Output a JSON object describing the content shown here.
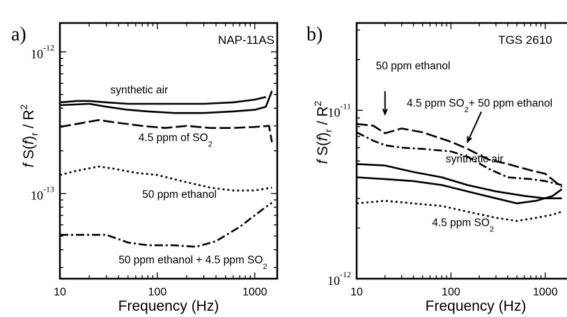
{
  "chart_data": [
    {
      "type": "line",
      "panel_label": "a)",
      "title": "NAP-11AS",
      "xlabel": "Frequency (Hz)",
      "ylabel": {
        "f": "f",
        "S": "S",
        "paren_open": "(",
        "f_arg": "f",
        "paren_close": ")",
        "sub_r": "r",
        "slash": "/",
        "R": "R",
        "sup_2": "2"
      },
      "xscale": "log",
      "yscale": "log",
      "xlim": [
        10,
        1700
      ],
      "ylim": [
        2.5e-14,
        1.6e-12
      ],
      "xticks": [
        {
          "v": 10,
          "label": "10"
        },
        {
          "v": 100,
          "label": "100"
        },
        {
          "v": 1000,
          "label": "1000"
        }
      ],
      "yticks": [
        {
          "v": 1e-12,
          "mant": "10",
          "exp": "-12"
        },
        {
          "v": 1e-13,
          "mant": "10",
          "exp": "-13"
        }
      ],
      "series": [
        {
          "name": "synthetic air",
          "dash": "",
          "points": [
            [
              10,
              4.4e-13
            ],
            [
              15,
              4.5e-13
            ],
            [
              20,
              4.5e-13
            ],
            [
              30,
              4.4e-13
            ],
            [
              50,
              4.3e-13
            ],
            [
              80,
              4.3e-13
            ],
            [
              150,
              4.3e-13
            ],
            [
              300,
              4.3e-13
            ],
            [
              600,
              4.4e-13
            ],
            [
              1000,
              4.6e-13
            ],
            [
              1300,
              4.8e-13
            ]
          ]
        },
        {
          "name": "synthetic air",
          "dash": "",
          "points": [
            [
              10,
              4.2e-13
            ],
            [
              20,
              4.3e-13
            ],
            [
              30,
              4.1e-13
            ],
            [
              50,
              3.9e-13
            ],
            [
              80,
              3.8e-13
            ],
            [
              150,
              3.7e-13
            ],
            [
              300,
              3.7e-13
            ],
            [
              600,
              3.8e-13
            ],
            [
              1000,
              3.9e-13
            ],
            [
              1300,
              4.1e-13
            ],
            [
              1500,
              5.3e-13
            ]
          ]
        },
        {
          "name": "4.5 ppm of SO2",
          "dash": "16,5",
          "points": [
            [
              10,
              2.95e-13
            ],
            [
              15,
              3.1e-13
            ],
            [
              25,
              3.3e-13
            ],
            [
              40,
              3.15e-13
            ],
            [
              70,
              3e-13
            ],
            [
              120,
              2.9e-13
            ],
            [
              200,
              3e-13
            ],
            [
              350,
              2.9e-13
            ],
            [
              600,
              2.9e-13
            ],
            [
              1000,
              2.95e-13
            ],
            [
              1400,
              3e-13
            ],
            [
              1500,
              2.3e-13
            ]
          ]
        },
        {
          "name": "50 ppm ethanol",
          "dash": "3,4",
          "points": [
            [
              10,
              1.35e-13
            ],
            [
              15,
              1.45e-13
            ],
            [
              25,
              1.55e-13
            ],
            [
              35,
              1.5e-13
            ],
            [
              60,
              1.4e-13
            ],
            [
              100,
              1.35e-13
            ],
            [
              200,
              1.2e-13
            ],
            [
              350,
              1.1e-13
            ],
            [
              600,
              1.05e-13
            ],
            [
              1000,
              1.05e-13
            ],
            [
              1500,
              1.1e-13
            ]
          ]
        },
        {
          "name": "50 ppm ethanol + 4.5 ppm SO2",
          "dash": "12,4,3,4",
          "points": [
            [
              10,
              5.1e-14
            ],
            [
              30,
              5.1e-14
            ],
            [
              50,
              4.5e-14
            ],
            [
              80,
              4.3e-14
            ],
            [
              150,
              4.3e-14
            ],
            [
              250,
              4.2e-14
            ],
            [
              400,
              4.6e-14
            ],
            [
              700,
              5.8e-14
            ],
            [
              1200,
              7.7e-14
            ],
            [
              1500,
              8.6e-14
            ]
          ]
        }
      ],
      "annotations": [
        {
          "text": "synthetic air",
          "x": 33,
          "y": 5.1e-13
        },
        {
          "text": "4.5 ppm of SO",
          "sub": "2",
          "x": 64,
          "y": 2.35e-13
        },
        {
          "text": "50 ppm ethanol",
          "x": 70,
          "y": 9.3e-14
        },
        {
          "text": "50 ppm ethanol + 4.5 ppm SO",
          "sub": "2",
          "x": 40,
          "y": 3.2e-14
        }
      ]
    },
    {
      "type": "line",
      "panel_label": "b)",
      "title": "TGS 2610",
      "xlabel": "Frequency (Hz)",
      "ylabel": {
        "f": "f",
        "S": "S",
        "paren_open": "(",
        "f_arg": "f",
        "paren_close": ")",
        "sub_r": "r",
        "slash": "/",
        "R": "R",
        "sup_2": "2"
      },
      "xscale": "log",
      "yscale": "log",
      "xlim": [
        10,
        1700
      ],
      "ylim": [
        1e-12,
        3.3e-11
      ],
      "xticks": [
        {
          "v": 10,
          "label": "10"
        },
        {
          "v": 100,
          "label": "100"
        },
        {
          "v": 1000,
          "label": "1000"
        }
      ],
      "yticks": [
        {
          "v": 1e-11,
          "mant": "10",
          "exp": "-11"
        },
        {
          "v": 1e-12,
          "mant": "10",
          "exp": "-12"
        }
      ],
      "series": [
        {
          "name": "50 ppm ethanol",
          "dash": "16,5",
          "points": [
            [
              10,
              8.3e-12
            ],
            [
              15,
              8.1e-12
            ],
            [
              20,
              7.3e-12
            ],
            [
              30,
              7.8e-12
            ],
            [
              50,
              7.4e-12
            ],
            [
              100,
              6.5e-12
            ],
            [
              150,
              5.9e-12
            ],
            [
              250,
              5.1e-12
            ],
            [
              400,
              4.8e-12
            ],
            [
              700,
              4.4e-12
            ],
            [
              1000,
              4.2e-12
            ],
            [
              1500,
              3.5e-12
            ]
          ]
        },
        {
          "name": "4.5 ppm SO2 + 50 ppm ethanol",
          "dash": "12,4,3,4",
          "points": [
            [
              10,
              7.4e-12
            ],
            [
              15,
              6.6e-12
            ],
            [
              20,
              6.2e-12
            ],
            [
              30,
              6e-12
            ],
            [
              50,
              5.9e-12
            ],
            [
              100,
              5.7e-12
            ],
            [
              150,
              5.3e-12
            ],
            [
              250,
              4.5e-12
            ],
            [
              400,
              4e-12
            ],
            [
              700,
              3.9e-12
            ],
            [
              1000,
              3.8e-12
            ],
            [
              1500,
              3.6e-12
            ]
          ]
        },
        {
          "name": "synthetic air",
          "dash": "",
          "points": [
            [
              10,
              4.8e-12
            ],
            [
              20,
              4.7e-12
            ],
            [
              40,
              4.3e-12
            ],
            [
              80,
              4e-12
            ],
            [
              150,
              3.6e-12
            ],
            [
              300,
              3.3e-12
            ],
            [
              600,
              3.1e-12
            ],
            [
              1000,
              3e-12
            ],
            [
              1500,
              3e-12
            ]
          ]
        },
        {
          "name": "synthetic air",
          "dash": "",
          "points": [
            [
              10,
              4e-12
            ],
            [
              20,
              3.9e-12
            ],
            [
              40,
              3.8e-12
            ],
            [
              80,
              3.6e-12
            ],
            [
              150,
              3.3e-12
            ],
            [
              300,
              3e-12
            ],
            [
              500,
              2.8e-12
            ],
            [
              800,
              2.9e-12
            ],
            [
              1200,
              3.1e-12
            ],
            [
              1500,
              3.4e-12
            ]
          ]
        },
        {
          "name": "4.5 ppm SO2",
          "dash": "3,4",
          "points": [
            [
              10,
              2.8e-12
            ],
            [
              20,
              2.9e-12
            ],
            [
              40,
              2.8e-12
            ],
            [
              80,
              2.7e-12
            ],
            [
              150,
              2.5e-12
            ],
            [
              300,
              2.3e-12
            ],
            [
              500,
              2.2e-12
            ],
            [
              800,
              2.3e-12
            ],
            [
              1200,
              2.4e-12
            ],
            [
              1500,
              2.5e-12
            ]
          ]
        }
      ],
      "annotations": [
        {
          "text": "50 ppm ethanol",
          "x": 16,
          "y": 1.75e-11
        },
        {
          "text": "4.5 ppm SO",
          "sub": "2",
          "after": "+ 50 ppm ethanol",
          "x": 34,
          "y": 1.05e-11
        },
        {
          "text": "synthetic air",
          "x": 88,
          "y": 4.9e-12
        },
        {
          "text": "4.5 ppm SO",
          "sub": "2",
          "x": 63,
          "y": 2.05e-12
        }
      ],
      "arrows": [
        {
          "x1": 20,
          "y1": 1.3e-11,
          "x2": 20,
          "y2": 9.5e-12
        },
        {
          "x1": 210,
          "y1": 9.8e-12,
          "x2": 150,
          "y2": 6.5e-12
        }
      ]
    }
  ]
}
